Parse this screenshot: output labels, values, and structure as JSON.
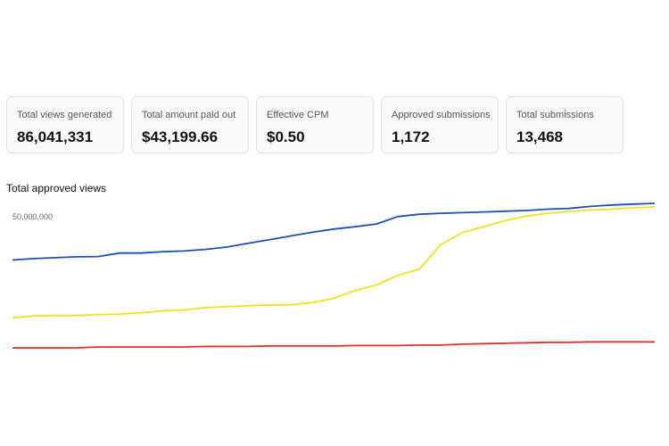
{
  "stats": [
    {
      "label": "Total views generated",
      "value": "86,041,331"
    },
    {
      "label": "Total amount paid out",
      "value": "$43,199.66"
    },
    {
      "label": "Effective CPM",
      "value": "$0.50"
    },
    {
      "label": "Approved submissions",
      "value": "1,172"
    },
    {
      "label": "Total submissions",
      "value": "13,468"
    }
  ],
  "chart_title": "Total approved views",
  "chart_data": {
    "type": "line",
    "title": "Total approved views",
    "xlabel": "",
    "ylabel": "",
    "y_tick_labels": [
      "50,000,000"
    ],
    "y_ticks": [
      50000000
    ],
    "ylim": [
      0,
      65000000
    ],
    "grid": false,
    "legend": "none",
    "x": [
      0,
      1,
      2,
      3,
      4,
      5,
      6,
      7,
      8,
      9,
      10,
      11,
      12,
      13,
      14,
      15,
      16,
      17,
      18,
      19,
      20,
      21,
      22,
      23,
      24,
      25,
      26,
      27,
      28,
      29,
      30
    ],
    "series": [
      {
        "color": "#1f4fb5",
        "values": [
          38000000,
          38600000,
          39000000,
          39400000,
          39500000,
          41000000,
          41000000,
          41600000,
          41900000,
          42600000,
          43600000,
          45200000,
          46800000,
          48400000,
          50000000,
          51400000,
          52400000,
          53600000,
          56800000,
          57800000,
          58200000,
          58500000,
          58800000,
          59100000,
          59400000,
          60000000,
          60300000,
          61200000,
          61800000,
          62200000,
          62500000
        ]
      },
      {
        "color": "#f2e21b",
        "values": [
          13000000,
          13800000,
          14000000,
          14000000,
          14400000,
          14600000,
          15200000,
          16000000,
          16400000,
          17400000,
          17800000,
          18200000,
          18600000,
          18600000,
          19600000,
          21400000,
          24800000,
          27200000,
          31400000,
          34000000,
          44600000,
          49800000,
          52400000,
          55000000,
          57000000,
          58200000,
          59000000,
          59600000,
          60000000,
          60600000,
          61000000
        ]
      },
      {
        "color": "#e03030",
        "values": [
          0,
          0,
          0,
          0,
          400000,
          400000,
          400000,
          400000,
          400000,
          600000,
          600000,
          600000,
          800000,
          800000,
          800000,
          800000,
          1000000,
          1000000,
          1000000,
          1200000,
          1200000,
          1600000,
          1800000,
          2000000,
          2200000,
          2400000,
          2400000,
          2600000,
          2600000,
          2600000,
          2600000
        ]
      }
    ]
  }
}
